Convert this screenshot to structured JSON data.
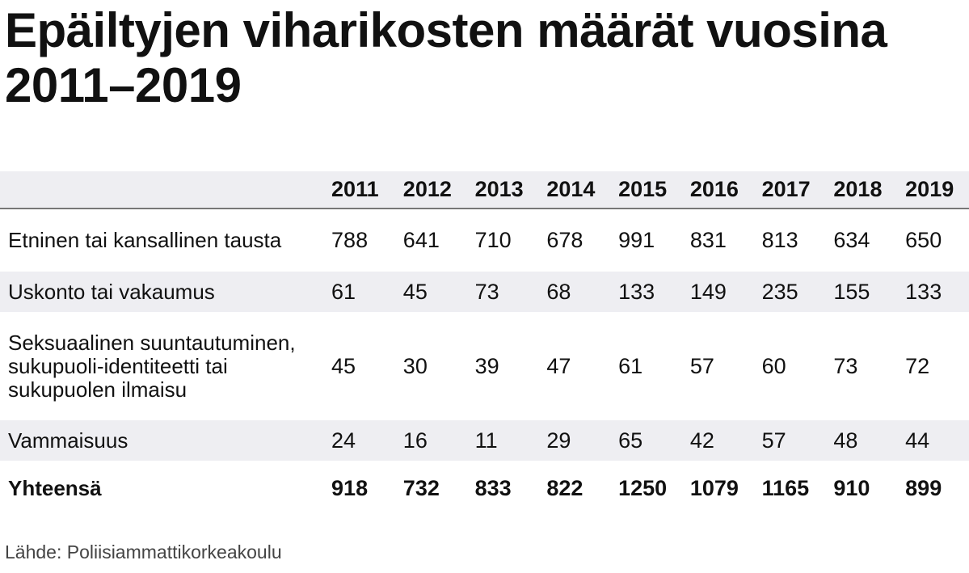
{
  "title": "Epäiltyjen viharikosten määrät vuosina 2011–2019",
  "source": "Lähde: Poliisiammattikorkeakoulu",
  "chart_data": {
    "type": "table",
    "title": "Epäiltyjen viharikosten määrät vuosina 2011–2019",
    "columns": [
      "2011",
      "2012",
      "2013",
      "2014",
      "2015",
      "2016",
      "2017",
      "2018",
      "2019"
    ],
    "rows": [
      {
        "label": "Etninen tai kansallinen tausta",
        "values": [
          788,
          641,
          710,
          678,
          991,
          831,
          813,
          634,
          650
        ]
      },
      {
        "label": "Uskonto tai vakaumus",
        "values": [
          61,
          45,
          73,
          68,
          133,
          149,
          235,
          155,
          133
        ]
      },
      {
        "label": "Seksuaalinen suuntautuminen, sukupuoli-identiteetti tai sukupuolen ilmaisu",
        "values": [
          45,
          30,
          39,
          47,
          61,
          57,
          60,
          73,
          72
        ]
      },
      {
        "label": "Vammaisuus",
        "values": [
          24,
          16,
          11,
          29,
          65,
          42,
          57,
          48,
          44
        ]
      }
    ],
    "total": {
      "label": "Yhteensä",
      "values": [
        918,
        732,
        833,
        822,
        1250,
        1079,
        1165,
        910,
        899
      ]
    }
  }
}
